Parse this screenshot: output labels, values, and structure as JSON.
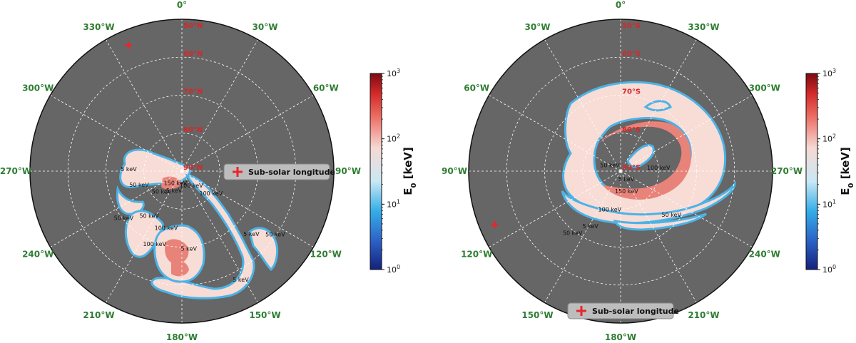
{
  "chart_data": [
    {
      "type": "polar-map",
      "hemisphere": "north",
      "background_color": "#666666",
      "longitude_labels": [
        "0°",
        "30°W",
        "60°W",
        "90°W",
        "120°W",
        "150°W",
        "180°W",
        "210°W",
        "240°W",
        "270°W",
        "300°W",
        "330°W"
      ],
      "latitude_labels": [
        "50°N",
        "60°N",
        "70°N",
        "80°N",
        "90°N"
      ],
      "latitude_range": [
        50,
        90
      ],
      "subsolar_longitude": {
        "lon_w": 337,
        "lat": 54,
        "marker": "+",
        "color": "#e8262d"
      },
      "legend": {
        "label": "Sub-solar longitude",
        "placement": "right"
      },
      "contour_labels": [
        {
          "text": "50 keV",
          "lon_w": 222,
          "lat": 82
        },
        {
          "text": "150 keV",
          "lon_w": 205,
          "lat": 86
        },
        {
          "text": "5 keV",
          "lon_w": 200,
          "lat": 84
        },
        {
          "text": "100 keV",
          "lon_w": 150,
          "lat": 85
        },
        {
          "text": "100 keV",
          "lon_w": 130,
          "lat": 80
        },
        {
          "text": "50 keV",
          "lon_w": 250,
          "lat": 78
        },
        {
          "text": "50 keV",
          "lon_w": 215,
          "lat": 75
        },
        {
          "text": "50 keV",
          "lon_w": 230,
          "lat": 70
        },
        {
          "text": "100 keV",
          "lon_w": 195,
          "lat": 74
        },
        {
          "text": "100 keV",
          "lon_w": 200,
          "lat": 69
        },
        {
          "text": "5 keV",
          "lon_w": 175,
          "lat": 69
        },
        {
          "text": "5 keV",
          "lon_w": 133,
          "lat": 65
        },
        {
          "text": "50 keV",
          "lon_w": 125,
          "lat": 60
        },
        {
          "text": "5 keV",
          "lon_w": 152,
          "lat": 57
        },
        {
          "text": "5 keV",
          "lon_w": 270,
          "lat": 76
        }
      ],
      "colorbar": {
        "label": "E",
        "label_sub": "0",
        "label_rest": " [keV]",
        "scale": "log",
        "range": [
          1,
          1000
        ],
        "ticks": [
          "10",
          "10",
          "10",
          "10"
        ],
        "tick_exponents": [
          "0",
          "1",
          "2",
          "3"
        ]
      }
    },
    {
      "type": "polar-map",
      "hemisphere": "south",
      "background_color": "#666666",
      "longitude_labels": [
        "0°",
        "30°W",
        "60°W",
        "90°W",
        "120°W",
        "150°W",
        "180°W",
        "210°W",
        "240°W",
        "270°W",
        "300°W",
        "330°W"
      ],
      "latitude_labels": [
        "50°S",
        "60°S",
        "70°S",
        "80°S",
        "90°S"
      ],
      "latitude_range": [
        50,
        90
      ],
      "subsolar_longitude": {
        "lon_w": 113,
        "lat": 54,
        "marker": "+",
        "color": "#e8262d"
      },
      "legend": {
        "label": "Sub-solar longitude",
        "placement": "bottom"
      },
      "contour_labels": [
        {
          "text": "100 keV",
          "lon_w": 272,
          "lat": 80
        },
        {
          "text": "50 keV",
          "lon_w": 70,
          "lat": 87
        },
        {
          "text": "5 keV",
          "lon_w": 210,
          "lat": 87
        },
        {
          "text": "150 keV",
          "lon_w": 195,
          "lat": 84
        },
        {
          "text": "100 keV",
          "lon_w": 165,
          "lat": 79
        },
        {
          "text": "50 keV",
          "lon_w": 228,
          "lat": 72
        },
        {
          "text": "5 keV",
          "lon_w": 152,
          "lat": 73
        },
        {
          "text": "50 keV",
          "lon_w": 143,
          "lat": 69
        }
      ],
      "colorbar": {
        "label": "E",
        "label_sub": "0",
        "label_rest": " [keV]",
        "scale": "log",
        "range": [
          1,
          1000
        ],
        "ticks": [
          "10",
          "10",
          "10",
          "10"
        ],
        "tick_exponents": [
          "0",
          "1",
          "2",
          "3"
        ]
      }
    }
  ],
  "colors": {
    "map_background": "#666666",
    "grid": "#ffffff",
    "longitude_text": "#2e7d32",
    "latitude_text": "#d62728",
    "marker": "#e8262d",
    "legend_bg": "#bdbdbd",
    "aurora_fill": "#f7dcd8",
    "aurora_core": "#e87c6e",
    "aurora_edge": "#4bb3e6"
  }
}
